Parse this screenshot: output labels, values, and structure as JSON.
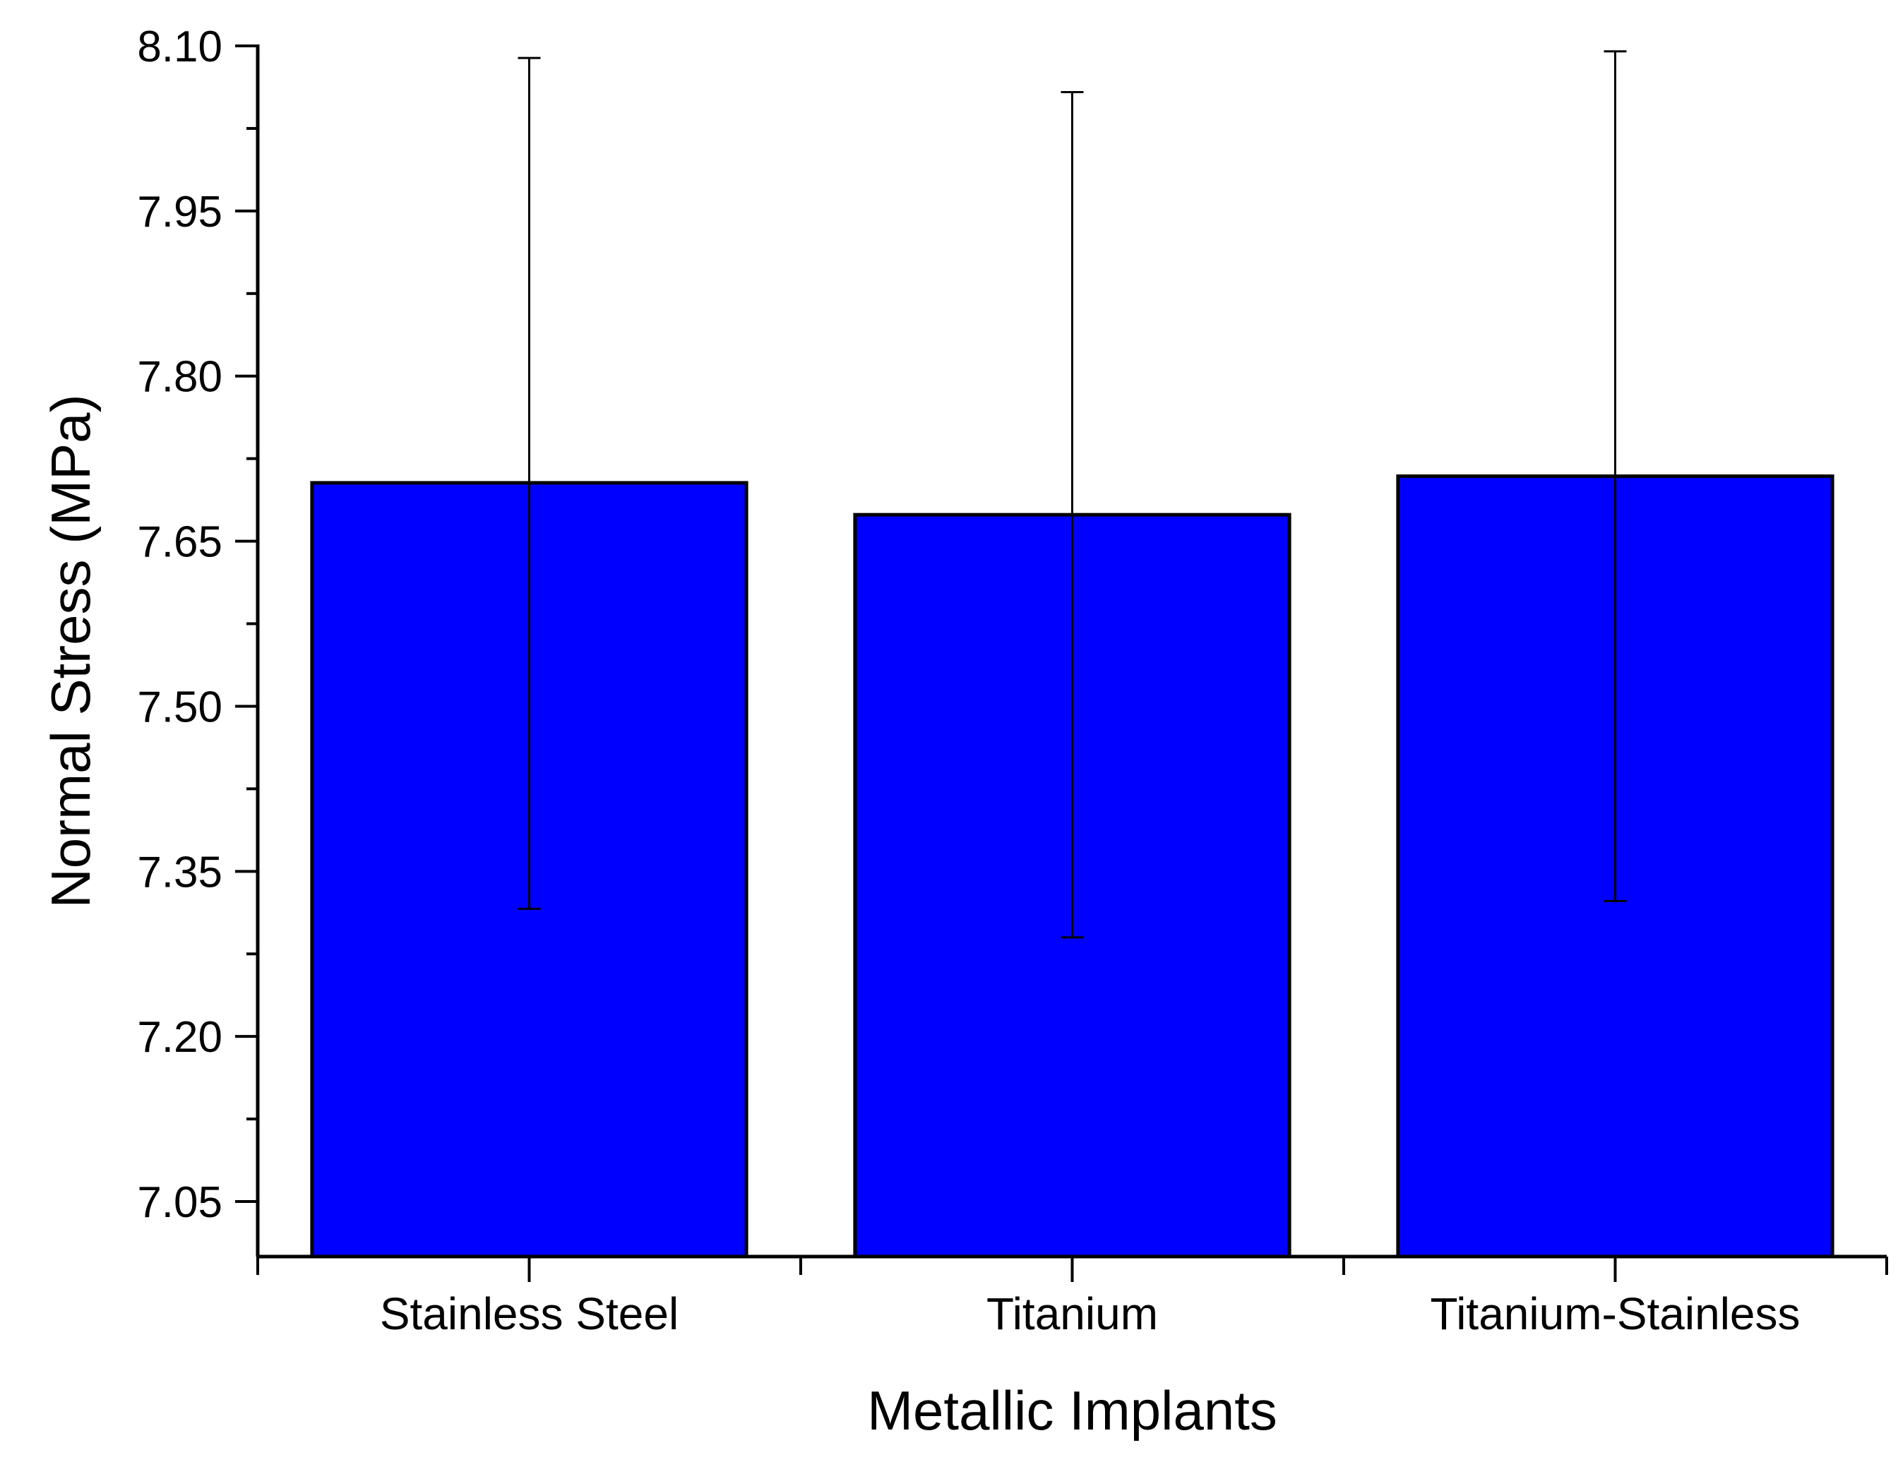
{
  "chart_data": {
    "type": "bar",
    "title": "",
    "xlabel": "Metallic Implants",
    "ylabel": "Normal Stress (MPa)",
    "categories": [
      "Stainless Steel",
      "Titanium",
      "Titanium-Stainless"
    ],
    "values": [
      7.703,
      7.674,
      7.709
    ],
    "error_lower": [
      7.316,
      7.29,
      7.323
    ],
    "error_upper": [
      8.089,
      8.058,
      8.095
    ],
    "ylim": [
      7.0,
      8.1
    ],
    "yticks": [
      "7.05",
      "7.20",
      "7.35",
      "7.50",
      "7.65",
      "7.80",
      "7.95",
      "8.10"
    ],
    "grid": false,
    "legend": "none",
    "bar_color": "#0000FF",
    "bar_edge_color": "#000000"
  }
}
